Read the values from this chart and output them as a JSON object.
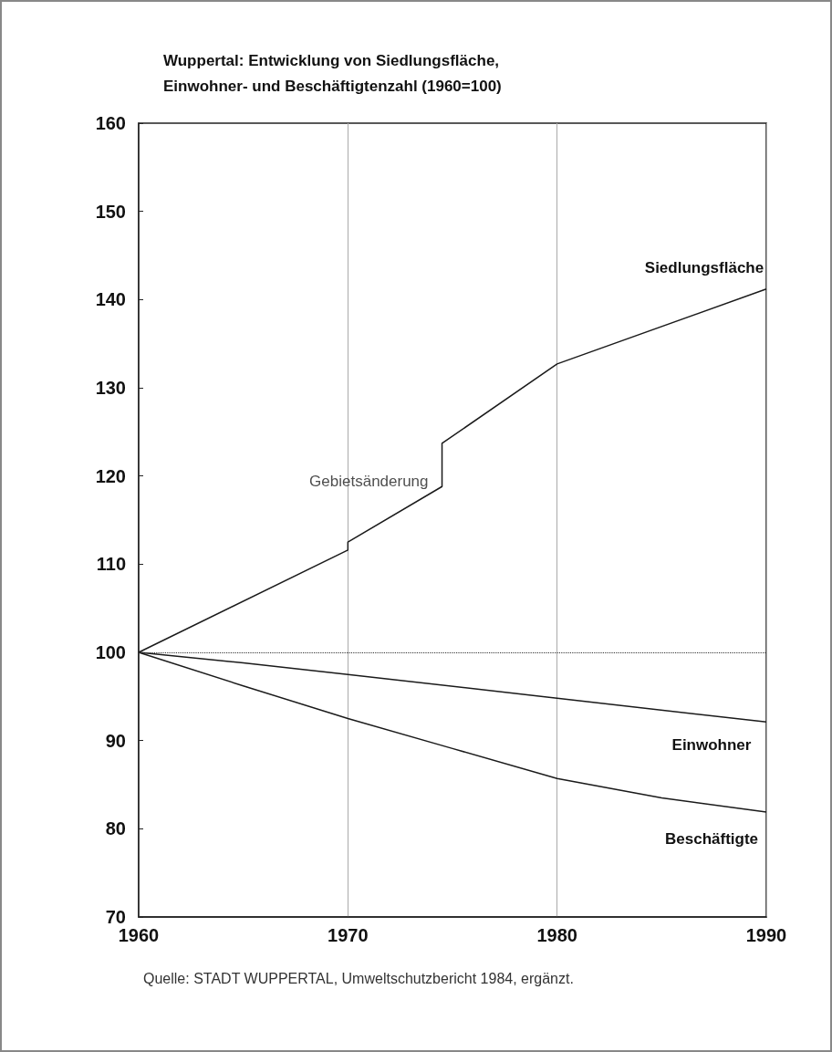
{
  "chart_data": {
    "type": "line",
    "title": "Wuppertal: Entwicklung von Siedlungsfläche, Einwohner- und Beschäftigtenzahl (1960=100)",
    "series": [
      {
        "name": "Siedlungsfläche",
        "color": "#1a1a1a",
        "x": [
          1960,
          1970,
          1970,
          1974.5,
          1974.5,
          1980,
          1990
        ],
        "values": [
          100,
          111.6,
          112.5,
          118.8,
          123.7,
          132.7,
          141.2
        ]
      },
      {
        "name": "Einwohner",
        "color": "#1a1a1a",
        "x": [
          1960,
          1965,
          1970,
          1980,
          1990
        ],
        "values": [
          100,
          98.8,
          97.5,
          94.8,
          92.1
        ]
      },
      {
        "name": "Beschäftigte",
        "color": "#1a1a1a",
        "x": [
          1960,
          1965,
          1970,
          1975,
          1980,
          1985,
          1990
        ],
        "values": [
          100,
          96.2,
          92.5,
          89.1,
          85.7,
          83.5,
          81.9
        ]
      }
    ],
    "xlim": [
      1960,
      1990
    ],
    "xticks": [
      1960,
      1970,
      1980,
      1990
    ],
    "ylim": [
      70,
      160
    ],
    "yticks": [
      70,
      80,
      90,
      100,
      110,
      120,
      130,
      140,
      150,
      160
    ],
    "grid": "x",
    "marker": "none",
    "line_style": "solid",
    "ref_lines": [
      {
        "axis": "y",
        "value": 100,
        "line_style": "dotted",
        "color": "#333333"
      }
    ],
    "annotations": [
      {
        "text": "Gebietsänderung",
        "x": 1974.5,
        "y": 118.8
      },
      "Quelle: STADT WUPPERTAL, Umweltschutzbericht 1984, ergänzt."
    ]
  }
}
